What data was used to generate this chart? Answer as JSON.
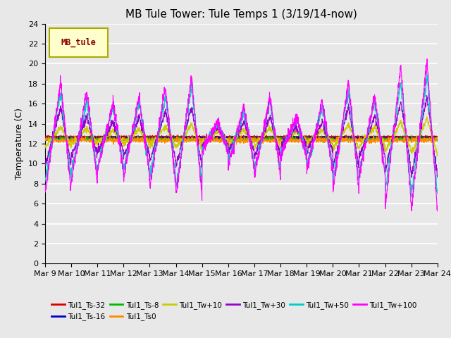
{
  "title": "MB Tule Tower: Tule Temps 1 (3/19/14-now)",
  "ylabel": "Temperature (C)",
  "legend_label": "MB_tule",
  "yticks": [
    0,
    2,
    4,
    6,
    8,
    10,
    12,
    14,
    16,
    18,
    20,
    22,
    24
  ],
  "ylim": [
    0,
    24
  ],
  "xtick_labels": [
    "Mar 9",
    "Mar 10",
    "Mar 11",
    "Mar 12",
    "Mar 13",
    "Mar 14",
    "Mar 15",
    "Mar 16",
    "Mar 17",
    "Mar 18",
    "Mar 19",
    "Mar 20",
    "Mar 21",
    "Mar 22",
    "Mar 23",
    "Mar 24"
  ],
  "series_colors": {
    "Tul1_Ts-32": "#dd0000",
    "Tul1_Ts-16": "#0000cc",
    "Tul1_Ts-8": "#00bb00",
    "Tul1_Ts0": "#ff8800",
    "Tul1_Tw+10": "#cccc00",
    "Tul1_Tw+30": "#9900cc",
    "Tul1_Tw+50": "#00cccc",
    "Tul1_Tw+100": "#ff00ff"
  },
  "bg_color": "#e8e8e8",
  "grid_color": "#ffffff",
  "title_fontsize": 11,
  "label_fontsize": 9,
  "tick_fontsize": 8,
  "legend_box_color": "#ffffcc",
  "legend_box_edge": "#aaaa00"
}
